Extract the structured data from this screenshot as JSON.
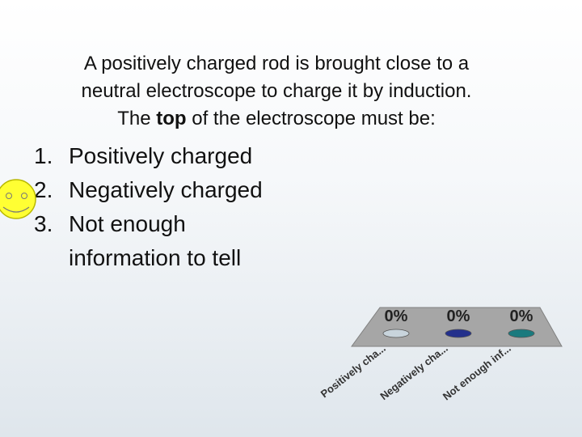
{
  "question": {
    "line1": "A positively charged rod is brought close to a",
    "line2": "neutral electroscope to charge it by induction.",
    "line3_start": "The ",
    "line3_bold": "top",
    "line3_end": " of the electroscope must be:"
  },
  "options": [
    {
      "number": "1.",
      "text": "Positively charged"
    },
    {
      "number": "2.",
      "text": "Negatively charged"
    },
    {
      "number": "3.",
      "text": "Not enough information to tell"
    }
  ],
  "chart_data": {
    "type": "bar",
    "categories": [
      "Positively cha...",
      "Negatively cha...",
      "Not enough inf..."
    ],
    "values": [
      0,
      0,
      0
    ],
    "value_labels": [
      "0%",
      "0%",
      "0%"
    ],
    "colors": [
      "#c8d4dc",
      "#23308c",
      "#1a7a7e"
    ]
  }
}
